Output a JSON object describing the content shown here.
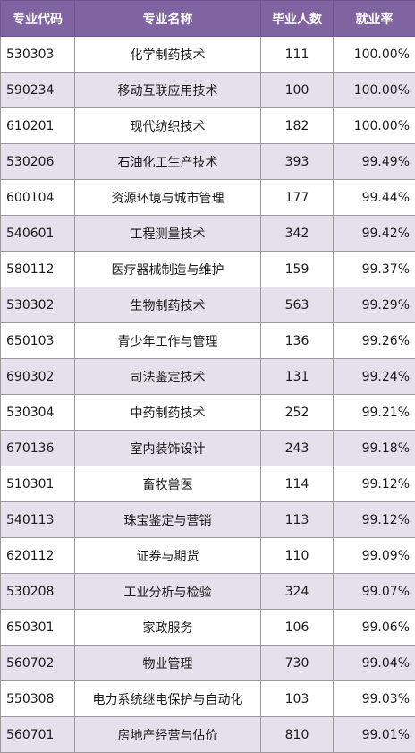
{
  "table": {
    "headers": {
      "code": "专业代码",
      "name": "专业名称",
      "graduates": "毕业人数",
      "rate": "就业率"
    },
    "rows": [
      {
        "code": "530303",
        "name": "化学制药技术",
        "graduates": "111",
        "rate": "100.00%"
      },
      {
        "code": "590234",
        "name": "移动互联应用技术",
        "graduates": "100",
        "rate": "100.00%"
      },
      {
        "code": "610201",
        "name": "现代纺织技术",
        "graduates": "182",
        "rate": "100.00%"
      },
      {
        "code": "530206",
        "name": "石油化工生产技术",
        "graduates": "393",
        "rate": "99.49%"
      },
      {
        "code": "600104",
        "name": "资源环境与城市管理",
        "graduates": "177",
        "rate": "99.44%"
      },
      {
        "code": "540601",
        "name": "工程测量技术",
        "graduates": "342",
        "rate": "99.42%"
      },
      {
        "code": "580112",
        "name": "医疗器械制造与维护",
        "graduates": "159",
        "rate": "99.37%"
      },
      {
        "code": "530302",
        "name": "生物制药技术",
        "graduates": "563",
        "rate": "99.29%"
      },
      {
        "code": "650103",
        "name": "青少年工作与管理",
        "graduates": "136",
        "rate": "99.26%"
      },
      {
        "code": "690302",
        "name": "司法鉴定技术",
        "graduates": "131",
        "rate": "99.24%"
      },
      {
        "code": "530304",
        "name": "中药制药技术",
        "graduates": "252",
        "rate": "99.21%"
      },
      {
        "code": "670136",
        "name": "室内装饰设计",
        "graduates": "243",
        "rate": "99.18%"
      },
      {
        "code": "510301",
        "name": "畜牧兽医",
        "graduates": "114",
        "rate": "99.12%"
      },
      {
        "code": "540113",
        "name": "珠宝鉴定与营销",
        "graduates": "113",
        "rate": "99.12%"
      },
      {
        "code": "620112",
        "name": "证券与期货",
        "graduates": "110",
        "rate": "99.09%"
      },
      {
        "code": "530208",
        "name": "工业分析与检验",
        "graduates": "324",
        "rate": "99.07%"
      },
      {
        "code": "650301",
        "name": "家政服务",
        "graduates": "106",
        "rate": "99.06%"
      },
      {
        "code": "560702",
        "name": "物业管理",
        "graduates": "730",
        "rate": "99.04%"
      },
      {
        "code": "550308",
        "name": "电力系统继电保护与自动化",
        "graduates": "103",
        "rate": "99.03%"
      },
      {
        "code": "560701",
        "name": "房地产经营与估价",
        "graduates": "810",
        "rate": "99.01%"
      }
    ]
  },
  "colors": {
    "header_bg": "#8064a2",
    "stripe_bg": "#e6e0ec"
  }
}
